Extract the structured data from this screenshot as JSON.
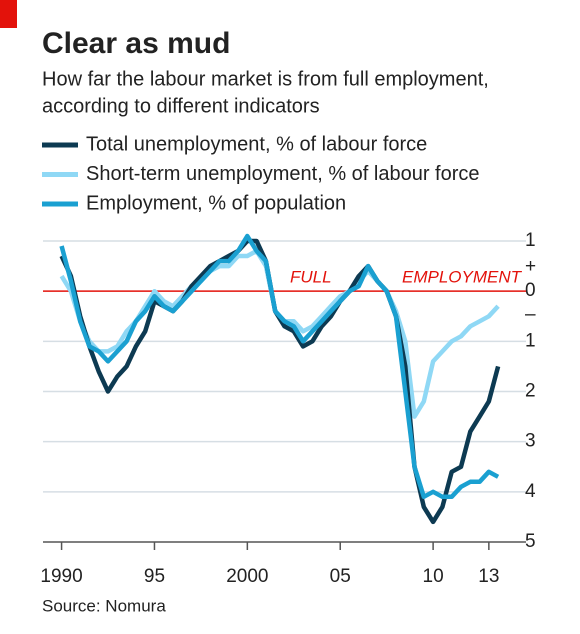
{
  "chart_data": {
    "type": "line",
    "title": "Clear as mud",
    "subtitle": [
      "How far the labour market is from full employment,",
      "according to different indicators"
    ],
    "source": "Source: Nomura",
    "zero_line_labels": [
      "FULL",
      "EMPLOYMENT"
    ],
    "sign_labels": [
      "+",
      "–"
    ],
    "x": [
      1990,
      1990.5,
      1991,
      1991.5,
      1992,
      1992.5,
      1993,
      1993.5,
      1994,
      1994.5,
      1995,
      1995.5,
      1996,
      1996.5,
      1997,
      1997.5,
      1998,
      1998.5,
      1999,
      1999.5,
      2000,
      2000.5,
      2001,
      2001.5,
      2002,
      2002.5,
      2003,
      2003.5,
      2004,
      2004.5,
      2005,
      2005.5,
      2006,
      2006.5,
      2007,
      2007.5,
      2008,
      2008.5,
      2009,
      2009.5,
      2010,
      2010.5,
      2011,
      2011.5,
      2012,
      2012.5,
      2013,
      2013.5
    ],
    "series": [
      {
        "name": "Total unemployment, % of labour force",
        "color": "#0d3a52",
        "values": [
          0.7,
          0.3,
          -0.5,
          -1.1,
          -1.6,
          -2.0,
          -1.7,
          -1.5,
          -1.1,
          -0.8,
          -0.2,
          -0.3,
          -0.4,
          -0.2,
          0.1,
          0.3,
          0.5,
          0.6,
          0.7,
          0.8,
          1.0,
          1.0,
          0.6,
          -0.4,
          -0.7,
          -0.8,
          -1.1,
          -1.0,
          -0.7,
          -0.5,
          -0.2,
          0.0,
          0.3,
          0.5,
          0.2,
          0.0,
          -0.5,
          -1.5,
          -3.5,
          -4.3,
          -4.6,
          -4.3,
          -3.6,
          -3.5,
          -2.8,
          -2.5,
          -2.2,
          -1.5
        ]
      },
      {
        "name": "Short-term unemployment, % of labour force",
        "color": "#8fd8f5",
        "values": [
          0.3,
          0.0,
          -0.6,
          -1.0,
          -1.2,
          -1.2,
          -1.1,
          -0.8,
          -0.6,
          -0.3,
          0.0,
          -0.2,
          -0.3,
          -0.1,
          0.1,
          0.2,
          0.4,
          0.5,
          0.5,
          0.7,
          0.7,
          0.8,
          0.5,
          -0.4,
          -0.6,
          -0.6,
          -0.8,
          -0.7,
          -0.5,
          -0.3,
          -0.1,
          0.0,
          0.2,
          0.4,
          0.2,
          0.0,
          -0.4,
          -1.0,
          -2.5,
          -2.2,
          -1.4,
          -1.2,
          -1.0,
          -0.9,
          -0.7,
          -0.6,
          -0.5,
          -0.3
        ]
      },
      {
        "name": "Employment, % of population",
        "color": "#1aa0d1",
        "values": [
          0.9,
          0.2,
          -0.6,
          -1.1,
          -1.2,
          -1.4,
          -1.2,
          -1.0,
          -0.6,
          -0.4,
          -0.1,
          -0.3,
          -0.4,
          -0.2,
          0.0,
          0.2,
          0.4,
          0.6,
          0.6,
          0.8,
          1.1,
          0.8,
          0.6,
          -0.4,
          -0.6,
          -0.7,
          -1.0,
          -0.8,
          -0.6,
          -0.4,
          -0.2,
          0.0,
          0.1,
          0.5,
          0.2,
          0.0,
          -0.5,
          -2.0,
          -3.5,
          -4.1,
          -4.0,
          -4.1,
          -4.1,
          -3.9,
          -3.8,
          -3.8,
          -3.6,
          -3.7
        ]
      }
    ],
    "xlim": [
      1989,
      2015
    ],
    "xticks": [
      1990,
      {
        "value": 1995,
        "label": "95"
      },
      2000,
      {
        "value": 2005,
        "label": "05"
      },
      {
        "value": 2010,
        "label": "10"
      },
      {
        "value": 2013,
        "label": "13"
      }
    ],
    "ylim": [
      -5,
      1
    ],
    "yticks": [
      1,
      0,
      {
        "value": -1,
        "label": "1"
      },
      {
        "value": -2,
        "label": "2"
      },
      {
        "value": -3,
        "label": "3"
      },
      {
        "value": -4,
        "label": "4"
      },
      {
        "value": -5,
        "label": "5"
      }
    ],
    "grid": true
  }
}
